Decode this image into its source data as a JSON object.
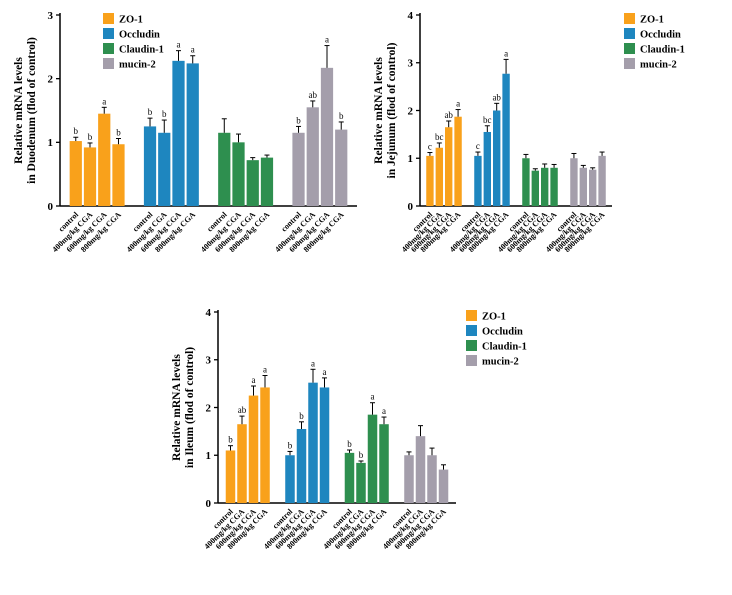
{
  "figure": {
    "background": "#ffffff"
  },
  "chart_data": [
    {
      "type": "bar",
      "name": "Duodenum",
      "ylabel_line1": "Relative mRNA levels",
      "ylabel_line2": "in Duodenum (flod of control)",
      "ylim": [
        0,
        3
      ],
      "yticks": [
        0,
        1,
        2,
        3
      ],
      "legend_position": "top-left-inside",
      "categories": [
        "control",
        "400mg/kg CGA",
        "600mg/kg CGA",
        "800mg/kg CGA"
      ],
      "series": [
        {
          "name": "ZO-1",
          "color": "#F9A11B",
          "values": [
            1.02,
            0.92,
            1.45,
            0.97
          ],
          "errors": [
            0.06,
            0.07,
            0.1,
            0.09
          ],
          "letters": [
            "b",
            "b",
            "a",
            "b"
          ]
        },
        {
          "name": "Occludin",
          "color": "#1E86BF",
          "values": [
            1.25,
            1.15,
            2.28,
            2.24
          ],
          "errors": [
            0.13,
            0.2,
            0.16,
            0.12
          ],
          "letters": [
            "b",
            "b",
            "a",
            "a"
          ]
        },
        {
          "name": "Claudin-1",
          "color": "#2E8F4F",
          "values": [
            1.15,
            1.0,
            0.72,
            0.76
          ],
          "errors": [
            0.22,
            0.13,
            0.04,
            0.04
          ],
          "letters": [
            "",
            "",
            "",
            ""
          ]
        },
        {
          "name": "mucin-2",
          "color": "#A49EAB",
          "values": [
            1.15,
            1.55,
            2.17,
            1.2
          ],
          "errors": [
            0.1,
            0.1,
            0.35,
            0.12
          ],
          "letters": [
            "b",
            "ab",
            "a",
            "b"
          ]
        }
      ]
    },
    {
      "type": "bar",
      "name": "Jejunum",
      "ylabel_line1": "Relative mRNA levels",
      "ylabel_line2": "in Jejunum (flod of control)",
      "ylim": [
        0,
        4
      ],
      "yticks": [
        0,
        1,
        2,
        3,
        4
      ],
      "legend_position": "top-right-outside",
      "categories": [
        "control",
        "400mg/kg CGA",
        "600mg/kg CGA",
        "800mg/kg CGA"
      ],
      "series": [
        {
          "name": "ZO-1",
          "color": "#F9A11B",
          "values": [
            1.05,
            1.22,
            1.65,
            1.87
          ],
          "errors": [
            0.07,
            0.1,
            0.13,
            0.15
          ],
          "letters": [
            "c",
            "bc",
            "ab",
            "a"
          ]
        },
        {
          "name": "Occludin",
          "color": "#1E86BF",
          "values": [
            1.05,
            1.55,
            2.0,
            2.77
          ],
          "errors": [
            0.08,
            0.13,
            0.15,
            0.3
          ],
          "letters": [
            "c",
            "bc",
            "ab",
            "a"
          ]
        },
        {
          "name": "Claudin-1",
          "color": "#2E8F4F",
          "values": [
            1.0,
            0.74,
            0.8,
            0.8
          ],
          "errors": [
            0.08,
            0.04,
            0.08,
            0.07
          ],
          "letters": [
            "",
            "",
            "",
            ""
          ]
        },
        {
          "name": "mucin-2",
          "color": "#A49EAB",
          "values": [
            1.0,
            0.8,
            0.76,
            1.05
          ],
          "errors": [
            0.1,
            0.05,
            0.04,
            0.08
          ],
          "letters": [
            "",
            "",
            "",
            ""
          ]
        }
      ]
    },
    {
      "type": "bar",
      "name": "Ileum",
      "ylabel_line1": "Relative mRNA levels",
      "ylabel_line2": "in Ileum (flod of control)",
      "ylim": [
        0,
        4
      ],
      "yticks": [
        0,
        1,
        2,
        3,
        4
      ],
      "legend_position": "top-right-outside",
      "categories": [
        "control",
        "400mg/kg CGA",
        "600mg/kg CGA",
        "800mg/kg CGA"
      ],
      "series": [
        {
          "name": "ZO-1",
          "color": "#F9A11B",
          "values": [
            1.1,
            1.65,
            2.25,
            2.42
          ],
          "errors": [
            0.1,
            0.17,
            0.2,
            0.25
          ],
          "letters": [
            "b",
            "ab",
            "a",
            "a"
          ]
        },
        {
          "name": "Occludin",
          "color": "#1E86BF",
          "values": [
            1.0,
            1.55,
            2.52,
            2.42
          ],
          "errors": [
            0.08,
            0.15,
            0.28,
            0.2
          ],
          "letters": [
            "b",
            "b",
            "a",
            "a"
          ]
        },
        {
          "name": "Claudin-1",
          "color": "#2E8F4F",
          "values": [
            1.05,
            0.84,
            1.85,
            1.65
          ],
          "errors": [
            0.06,
            0.04,
            0.25,
            0.15
          ],
          "letters": [
            "b",
            "b",
            "a",
            "a"
          ]
        },
        {
          "name": "mucin-2",
          "color": "#A49EAB",
          "values": [
            1.0,
            1.4,
            1.0,
            0.7
          ],
          "errors": [
            0.07,
            0.22,
            0.15,
            0.1
          ],
          "letters": [
            "",
            "",
            "",
            ""
          ]
        }
      ]
    }
  ]
}
